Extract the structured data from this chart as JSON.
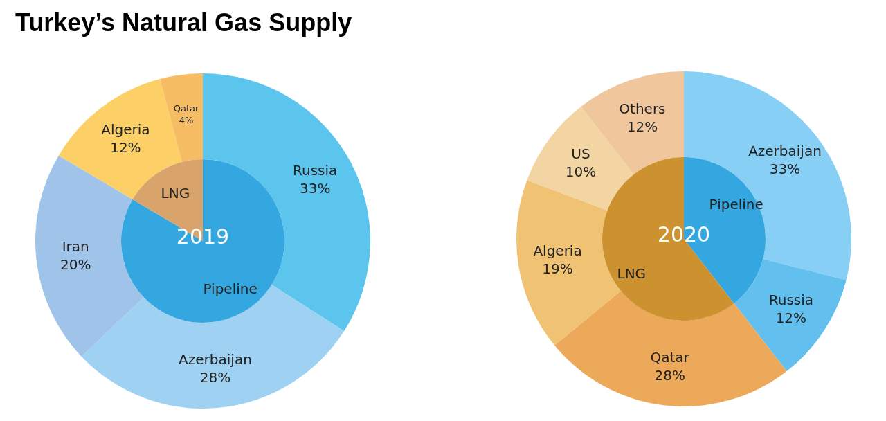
{
  "chart_data": [
    {
      "type": "donut",
      "title": "Turkey’s Natural Gas Supply",
      "categories": [
        "Russia",
        "Azerbaijan",
        "Iran",
        "Algeria",
        "Qatar"
      ],
      "values": [
        33,
        28,
        20,
        12,
        4
      ],
      "value_labels": [
        "33%",
        "28%",
        "20%",
        "12%",
        "4%"
      ],
      "colors": [
        "#5bc5ee",
        "#9fd2f2",
        "#9fc3e9",
        "#fcd066",
        "#f7bd64"
      ]
    },
    {
      "type": "pie",
      "annotations": [
        "2019"
      ],
      "categories": [
        "Pipeline",
        "LNG"
      ],
      "values": [
        83.5,
        16.5
      ],
      "colors": [
        "#35a7e0",
        "#d9a46b"
      ]
    },
    {
      "type": "donut",
      "categories": [
        "Azerbaijan",
        "Russia",
        "Qatar",
        "Algeria",
        "US",
        "Others"
      ],
      "values": [
        33,
        12,
        28,
        19,
        10,
        12
      ],
      "value_labels": [
        "33%",
        "12%",
        "28%",
        "19%",
        "10%",
        "12%"
      ],
      "colors": [
        "#87cff5",
        "#62bfee",
        "#eda95a",
        "#f0c274",
        "#f3d5a3",
        "#f0c79d"
      ]
    },
    {
      "type": "pie",
      "annotations": [
        "2020"
      ],
      "categories": [
        "Pipeline",
        "LNG"
      ],
      "values": [
        39.5,
        60.5
      ],
      "colors": [
        "#35a7e0",
        "#cc9230"
      ]
    }
  ]
}
